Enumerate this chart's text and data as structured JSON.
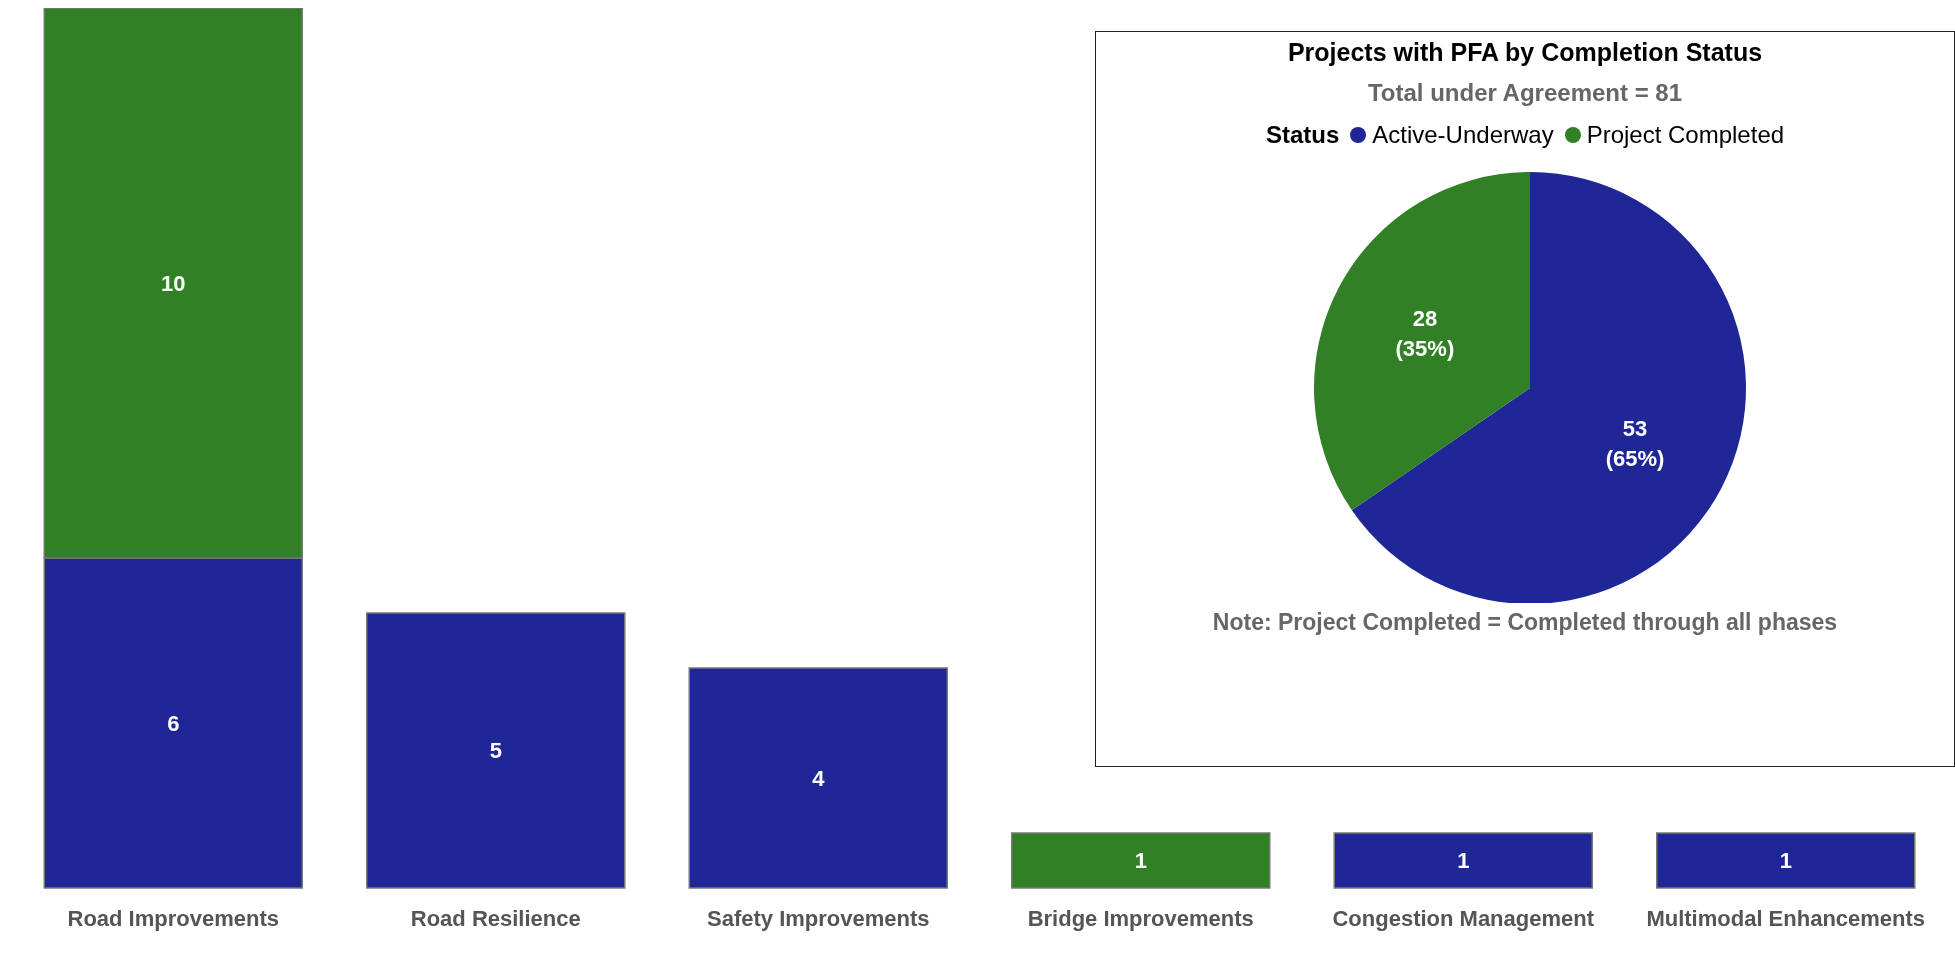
{
  "chart_data": [
    {
      "type": "bar",
      "stacked": true,
      "data_labels": true,
      "categories": [
        "Road Improvements",
        "Road Resilience",
        "Safety Improvements",
        "Bridge Improvements",
        "Congestion Management",
        "Multimodal Enhancements"
      ],
      "series": [
        {
          "color": "#1f2796",
          "values": [
            6,
            5,
            4,
            null,
            1,
            1
          ]
        },
        {
          "color": "#318026",
          "values": [
            10,
            null,
            null,
            1,
            null,
            null
          ]
        }
      ]
    },
    {
      "type": "pie",
      "title": "Projects with PFA by Completion Status",
      "subtitle": "Total under Agreement = 81",
      "legend_title": "Status",
      "legend": "top",
      "categories": [
        "Active-Underway",
        "Project Completed"
      ],
      "values": [
        53,
        28
      ],
      "colors": [
        "#1f2796",
        "#318026"
      ],
      "value_labels": [
        "53 (65%)",
        "28 (35%)"
      ],
      "annotations": [
        "Note: Project Completed = Completed through all phases"
      ]
    }
  ]
}
